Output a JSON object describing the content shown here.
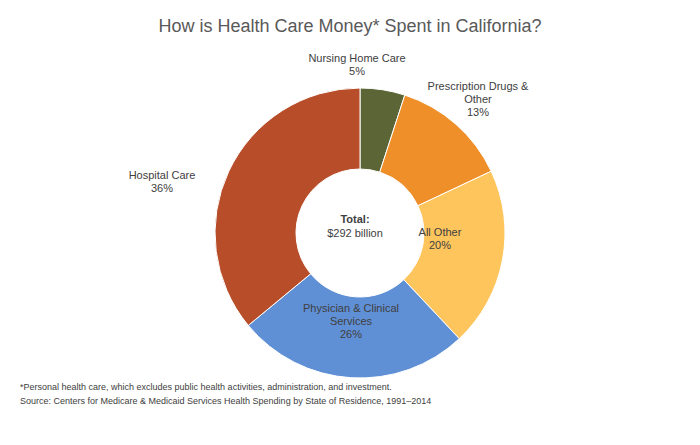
{
  "chart_data": {
    "type": "donut",
    "title": "How is Health Care Money* Spent in California?",
    "categories": [
      "Nursing Home Care",
      "Prescription Drugs & Other",
      "All Other",
      "Physician & Clinical Services",
      "Hospital Care"
    ],
    "values": [
      5,
      13,
      20,
      26,
      36
    ],
    "value_labels": [
      "5%",
      "13%",
      "20%",
      "26%",
      "36%"
    ],
    "colors": [
      "#5b6536",
      "#ee8f2a",
      "#fdc55c",
      "#5f8fd5",
      "#b84d2a"
    ],
    "data_labels": true,
    "center_text": [
      "Total:",
      "$292 billion"
    ],
    "footnote": "*Personal health care, which excludes public health activities, administration, and investment.",
    "source": "Source: Centers for Medicare & Medicaid Services Health Spending by State of Residence, 1991–2014"
  }
}
